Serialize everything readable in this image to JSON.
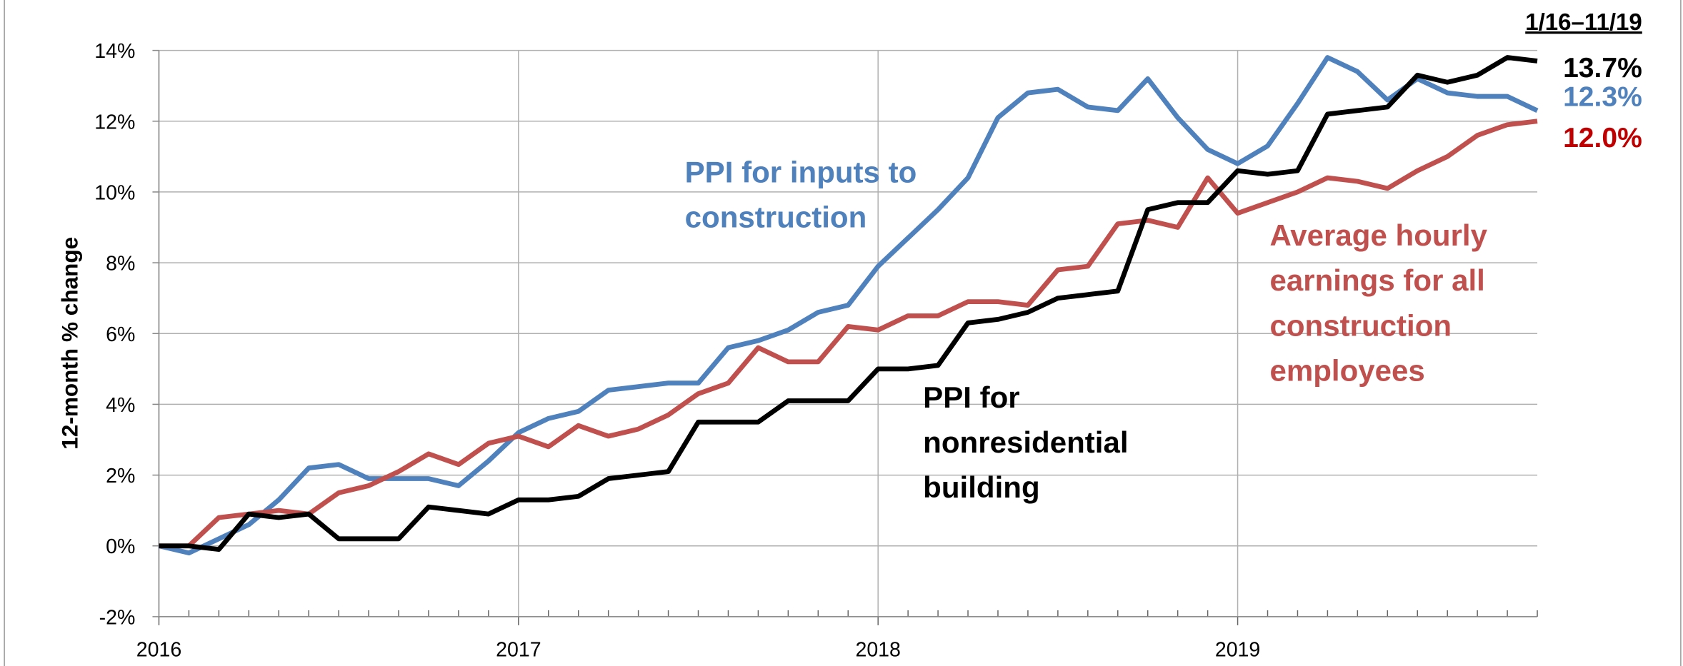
{
  "chart_data": {
    "type": "line",
    "ylabel": "12-month % change",
    "categories": [
      "2016",
      null,
      null,
      null,
      null,
      null,
      null,
      null,
      null,
      null,
      null,
      null,
      "2017",
      null,
      null,
      null,
      null,
      null,
      null,
      null,
      null,
      null,
      null,
      null,
      "2018",
      null,
      null,
      null,
      null,
      null,
      null,
      null,
      null,
      null,
      null,
      null,
      "2019",
      null,
      null,
      null,
      null,
      null,
      null,
      null,
      null,
      null,
      null
    ],
    "series": [
      {
        "name": "PPI for inputs to\nconstruction",
        "color": "#4f81bd",
        "values": [
          0,
          -0.2,
          0.2,
          0.6,
          1.3,
          2.2,
          2.3,
          1.9,
          1.9,
          1.9,
          1.7,
          2.4,
          3.2,
          3.6,
          3.8,
          4.4,
          4.5,
          4.6,
          4.6,
          5.6,
          5.8,
          6.1,
          6.6,
          6.8,
          7.9,
          8.7,
          9.5,
          10.4,
          12.1,
          12.8,
          12.9,
          12.4,
          12.3,
          13.2,
          12.1,
          11.2,
          10.8,
          11.3,
          12.5,
          13.8,
          13.4,
          12.6,
          13.2,
          12.8,
          12.7,
          12.7,
          12.3
        ]
      },
      {
        "name": "Average hourly\nearnings for all\nconstruction\nemployees",
        "color": "#c0504d",
        "values": [
          0,
          0,
          0.8,
          0.9,
          1.0,
          0.9,
          1.5,
          1.7,
          2.1,
          2.6,
          2.3,
          2.9,
          3.1,
          2.8,
          3.4,
          3.1,
          3.3,
          3.7,
          4.3,
          4.6,
          5.6,
          5.2,
          5.2,
          6.2,
          6.1,
          6.5,
          6.5,
          6.9,
          6.9,
          6.8,
          7.8,
          7.9,
          9.1,
          9.2,
          9.0,
          10.4,
          9.4,
          9.7,
          10.0,
          10.4,
          10.3,
          10.1,
          10.6,
          11.0,
          11.6,
          11.9,
          12.0
        ]
      },
      {
        "name": "PPI for\nnonresidential\nbuilding",
        "color": "#000000",
        "values": [
          0,
          0,
          -0.1,
          0.9,
          0.8,
          0.9,
          0.2,
          0.2,
          0.2,
          1.1,
          1.0,
          0.9,
          1.3,
          1.3,
          1.4,
          1.9,
          2.0,
          2.1,
          3.5,
          3.5,
          3.5,
          4.1,
          4.1,
          4.1,
          5.0,
          5.0,
          5.1,
          6.3,
          6.4,
          6.6,
          7.0,
          7.1,
          7.2,
          9.5,
          9.7,
          9.7,
          10.6,
          10.5,
          10.6,
          12.2,
          12.3,
          12.4,
          13.3,
          13.1,
          13.3,
          13.8,
          13.7
        ]
      }
    ],
    "annotations": [
      {
        "text": "1/16–11/19",
        "color": "#000000"
      },
      {
        "text": "13.7%",
        "color": "#000000"
      },
      {
        "text": "12.3%",
        "color": "#4f81bd"
      },
      {
        "text": "12.0%",
        "color": "#c00000"
      }
    ],
    "ylim": [
      -2,
      14
    ],
    "yticks": [
      {
        "value": -2,
        "label": "-2%"
      },
      {
        "value": 0,
        "label": "0%"
      },
      {
        "value": 2,
        "label": "2%"
      },
      {
        "value": 4,
        "label": "4%"
      },
      {
        "value": 6,
        "label": "6%"
      },
      {
        "value": 8,
        "label": "8%"
      },
      {
        "value": 10,
        "label": "10%"
      },
      {
        "value": 12,
        "label": "12%"
      },
      {
        "value": 14,
        "label": "14%"
      }
    ],
    "grid": true
  }
}
